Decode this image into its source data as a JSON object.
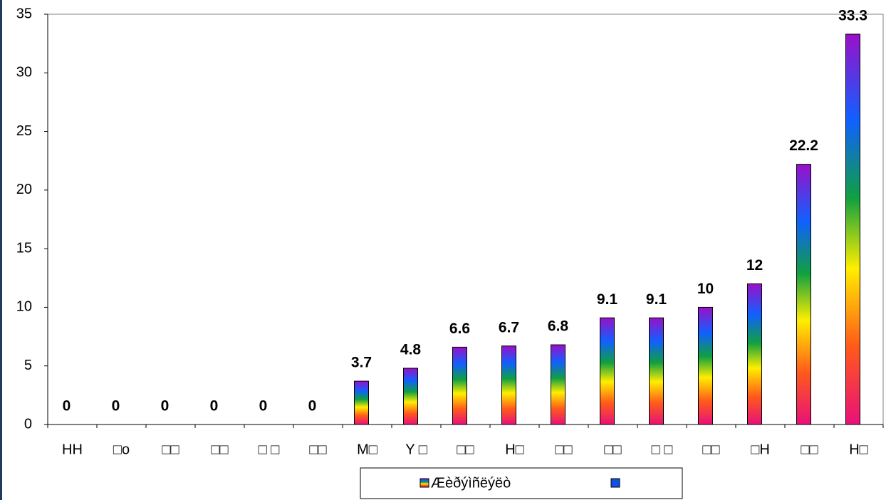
{
  "chart_data": {
    "type": "bar",
    "categories": [
      "HH",
      "□o",
      "□□",
      "□□",
      "□ □",
      "□□",
      "M□",
      "Y □",
      "□□",
      "H□",
      "□□",
      "□□",
      "□ □",
      "□□",
      "□H",
      "□□",
      "H□"
    ],
    "series": [
      {
        "name": "Æèðýìñëýëò",
        "values": [
          0,
          0,
          0,
          0,
          0,
          0,
          3.7,
          4.8,
          6.6,
          6.7,
          6.8,
          9.1,
          9.1,
          10,
          12,
          22.2,
          33.3
        ]
      }
    ],
    "ylim": [
      0,
      35
    ],
    "yticks": [
      0,
      5,
      10,
      15,
      20,
      25,
      30,
      35
    ],
    "legend": "bottom"
  }
}
